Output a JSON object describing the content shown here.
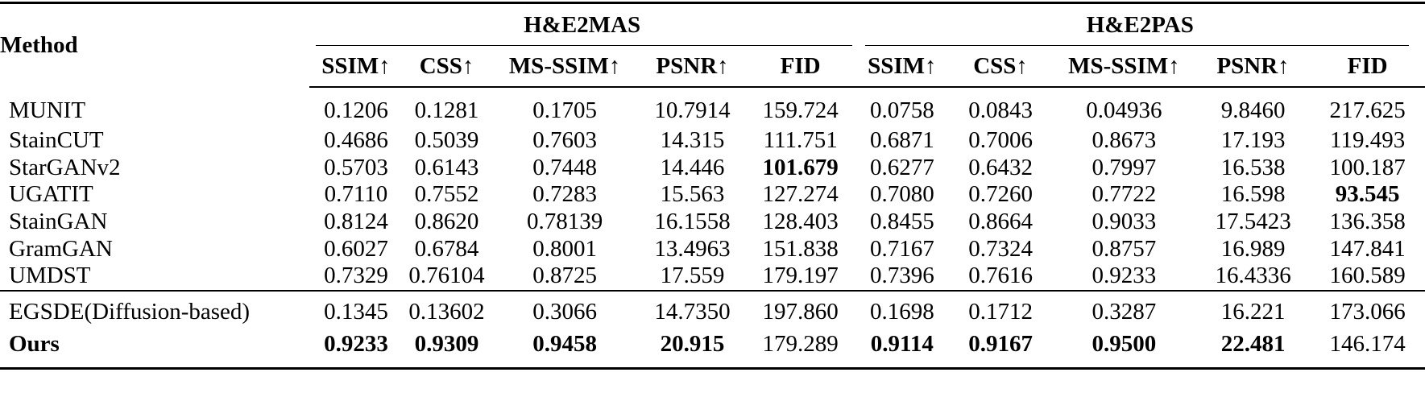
{
  "table": {
    "method_header": "Method",
    "groups": [
      {
        "label": "H&E2MAS"
      },
      {
        "label": "H&E2PAS"
      }
    ],
    "metrics": [
      "SSIM↑",
      "CSS↑",
      "MS-SSIM↑",
      "PSNR↑",
      "FID",
      "SSIM↑",
      "CSS↑",
      "MS-SSIM↑",
      "PSNR↑",
      "FID"
    ],
    "rows": [
      {
        "method": "MUNIT",
        "values": [
          "0.1206",
          "0.1281",
          "0.1705",
          "10.7914",
          "159.724",
          "0.0758",
          "0.0843",
          "0.04936",
          "9.8460",
          "217.625"
        ],
        "bold": []
      },
      {
        "method": "StainCUT",
        "values": [
          "0.4686",
          "0.5039",
          "0.7603",
          "14.315",
          "111.751",
          "0.6871",
          "0.7006",
          "0.8673",
          "17.193",
          "119.493"
        ],
        "bold": []
      },
      {
        "method": "StarGANv2",
        "values": [
          "0.5703",
          "0.6143",
          "0.7448",
          "14.446",
          "101.679",
          "0.6277",
          "0.6432",
          "0.7997",
          "16.538",
          "100.187"
        ],
        "bold": [
          4
        ]
      },
      {
        "method": "UGATIT",
        "values": [
          "0.7110",
          "0.7552",
          "0.7283",
          "15.563",
          "127.274",
          "0.7080",
          "0.7260",
          "0.7722",
          "16.598",
          "93.545"
        ],
        "bold": [
          9
        ]
      },
      {
        "method": "StainGAN",
        "values": [
          "0.8124",
          "0.8620",
          "0.78139",
          "16.1558",
          "128.403",
          "0.8455",
          "0.8664",
          "0.9033",
          "17.5423",
          "136.358"
        ],
        "bold": []
      },
      {
        "method": "GramGAN",
        "values": [
          "0.6027",
          "0.6784",
          "0.8001",
          "13.4963",
          "151.838",
          "0.7167",
          "0.7324",
          "0.8757",
          "16.989",
          "147.841"
        ],
        "bold": []
      },
      {
        "method": "UMDST",
        "values": [
          "0.7329",
          "0.76104",
          "0.8725",
          "17.559",
          "179.197",
          "0.7396",
          "0.7616",
          "0.9233",
          "16.4336",
          "160.589"
        ],
        "bold": []
      },
      {
        "method": "EGSDE(Diffusion-based)",
        "values": [
          "0.1345",
          "0.13602",
          "0.3066",
          "14.7350",
          "197.860",
          "0.1698",
          "0.1712",
          "0.3287",
          "16.221",
          "173.066"
        ],
        "bold": []
      },
      {
        "method": "Ours",
        "values": [
          "0.9233",
          "0.9309",
          "0.9458",
          "20.915",
          "179.289",
          "0.9114",
          "0.9167",
          "0.9500",
          "22.481",
          "146.174"
        ],
        "bold": [
          0,
          1,
          2,
          3,
          5,
          6,
          7,
          8
        ],
        "method_bold": true
      }
    ]
  }
}
